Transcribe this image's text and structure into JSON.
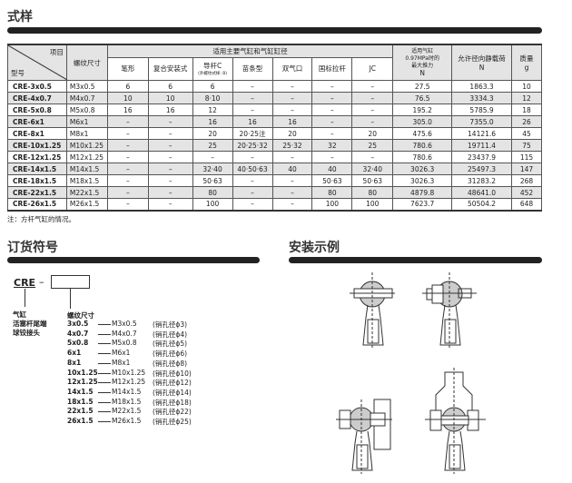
{
  "section1": {
    "title": "式样"
  },
  "table": {
    "corner_top": "项目",
    "corner_bottom": "型号",
    "thread_header": "螺纹尺寸",
    "group_header": "适用主要气缸和气缸缸径",
    "sub_headers": [
      "笔形",
      "复合安装式",
      "导杆C",
      "苗条型",
      "双气口",
      "国标拉杆",
      "JC"
    ],
    "guide_note": "(外螺纹式样: B)",
    "force_header": [
      "适用气缸",
      "0.97MPa时的",
      "最大推力",
      "N"
    ],
    "load_header": [
      "允许径向静载荷",
      "N"
    ],
    "mass_header": [
      "质量",
      "g"
    ],
    "rows": [
      [
        "CRE-3x0.5",
        "M3x0.5",
        "6",
        "6",
        "6",
        "–",
        "–",
        "–",
        "–",
        "27.5",
        "1863.3",
        "10"
      ],
      [
        "CRE-4x0.7",
        "M4x0.7",
        "10",
        "10",
        "8·10",
        "–",
        "–",
        "–",
        "–",
        "76.5",
        "3334.3",
        "12"
      ],
      [
        "CRE-5x0.8",
        "M5x0.8",
        "16",
        "16",
        "12",
        "–",
        "–",
        "–",
        "–",
        "195.2",
        "5785.9",
        "18"
      ],
      [
        "CRE-6x1",
        "M6x1",
        "–",
        "–",
        "16",
        "16",
        "16",
        "–",
        "–",
        "305.0",
        "7355.0",
        "26"
      ],
      [
        "CRE-8x1",
        "M8x1",
        "–",
        "–",
        "20",
        "20·25注",
        "20",
        "–",
        "20",
        "475.6",
        "14121.6",
        "45"
      ],
      [
        "CRE-10x1.25",
        "M10x1.25",
        "–",
        "–",
        "25",
        "20·25·32",
        "25·32",
        "32",
        "25",
        "780.6",
        "19711.4",
        "75"
      ],
      [
        "CRE-12x1.25",
        "M12x1.25",
        "–",
        "–",
        "–",
        "–",
        "–",
        "–",
        "–",
        "780.6",
        "23437.9",
        "115"
      ],
      [
        "CRE-14x1.5",
        "M14x1.5",
        "–",
        "–",
        "32·40",
        "40·50·63",
        "40",
        "40",
        "32·40",
        "3026.3",
        "25497.3",
        "147"
      ],
      [
        "CRE-18x1.5",
        "M18x1.5",
        "–",
        "–",
        "50·63",
        "–",
        "–",
        "50·63",
        "50·63",
        "3026.3",
        "31283.2",
        "268"
      ],
      [
        "CRE-22x1.5",
        "M22x1.5",
        "–",
        "–",
        "80",
        "–",
        "–",
        "80",
        "80",
        "4879.8",
        "48641.0",
        "452"
      ],
      [
        "CRE-26x1.5",
        "M26x1.5",
        "–",
        "–",
        "100",
        "–",
        "–",
        "100",
        "100",
        "7623.7",
        "50504.2",
        "648"
      ]
    ],
    "note": "注：方杆气缸的情况。"
  },
  "section2": {
    "title": "订货符号",
    "prefix": "CRE",
    "dash": "–",
    "left_label": [
      "气缸",
      "活塞杆尾端",
      "球铰接头"
    ],
    "thread_label": "螺纹尺寸",
    "codes": [
      [
        "3x0.5",
        "M3x0.5",
        "(销孔径ϕ3)"
      ],
      [
        "4x0.7",
        "M4x0.7",
        "(销孔径ϕ4)"
      ],
      [
        "5x0.8",
        "M5x0.8",
        "(销孔径ϕ5)"
      ],
      [
        "6x1",
        "M6x1",
        "(销孔径ϕ6)"
      ],
      [
        "8x1",
        "M8x1",
        "(销孔径ϕ8)"
      ],
      [
        "10x1.25",
        "M10x1.25",
        "(销孔径ϕ10)"
      ],
      [
        "12x1.25",
        "M12x1.25",
        "(销孔径ϕ12)"
      ],
      [
        "14x1.5",
        "M14x1.5",
        "(销孔径ϕ14)"
      ],
      [
        "18x1.5",
        "M18x1.5",
        "(销孔径ϕ18)"
      ],
      [
        "22x1.5",
        "M22x1.5",
        "(销孔径ϕ22)"
      ],
      [
        "26x1.5",
        "M26x1.5",
        "(销孔径ϕ25)"
      ]
    ]
  },
  "section3": {
    "title": "安装示例"
  }
}
